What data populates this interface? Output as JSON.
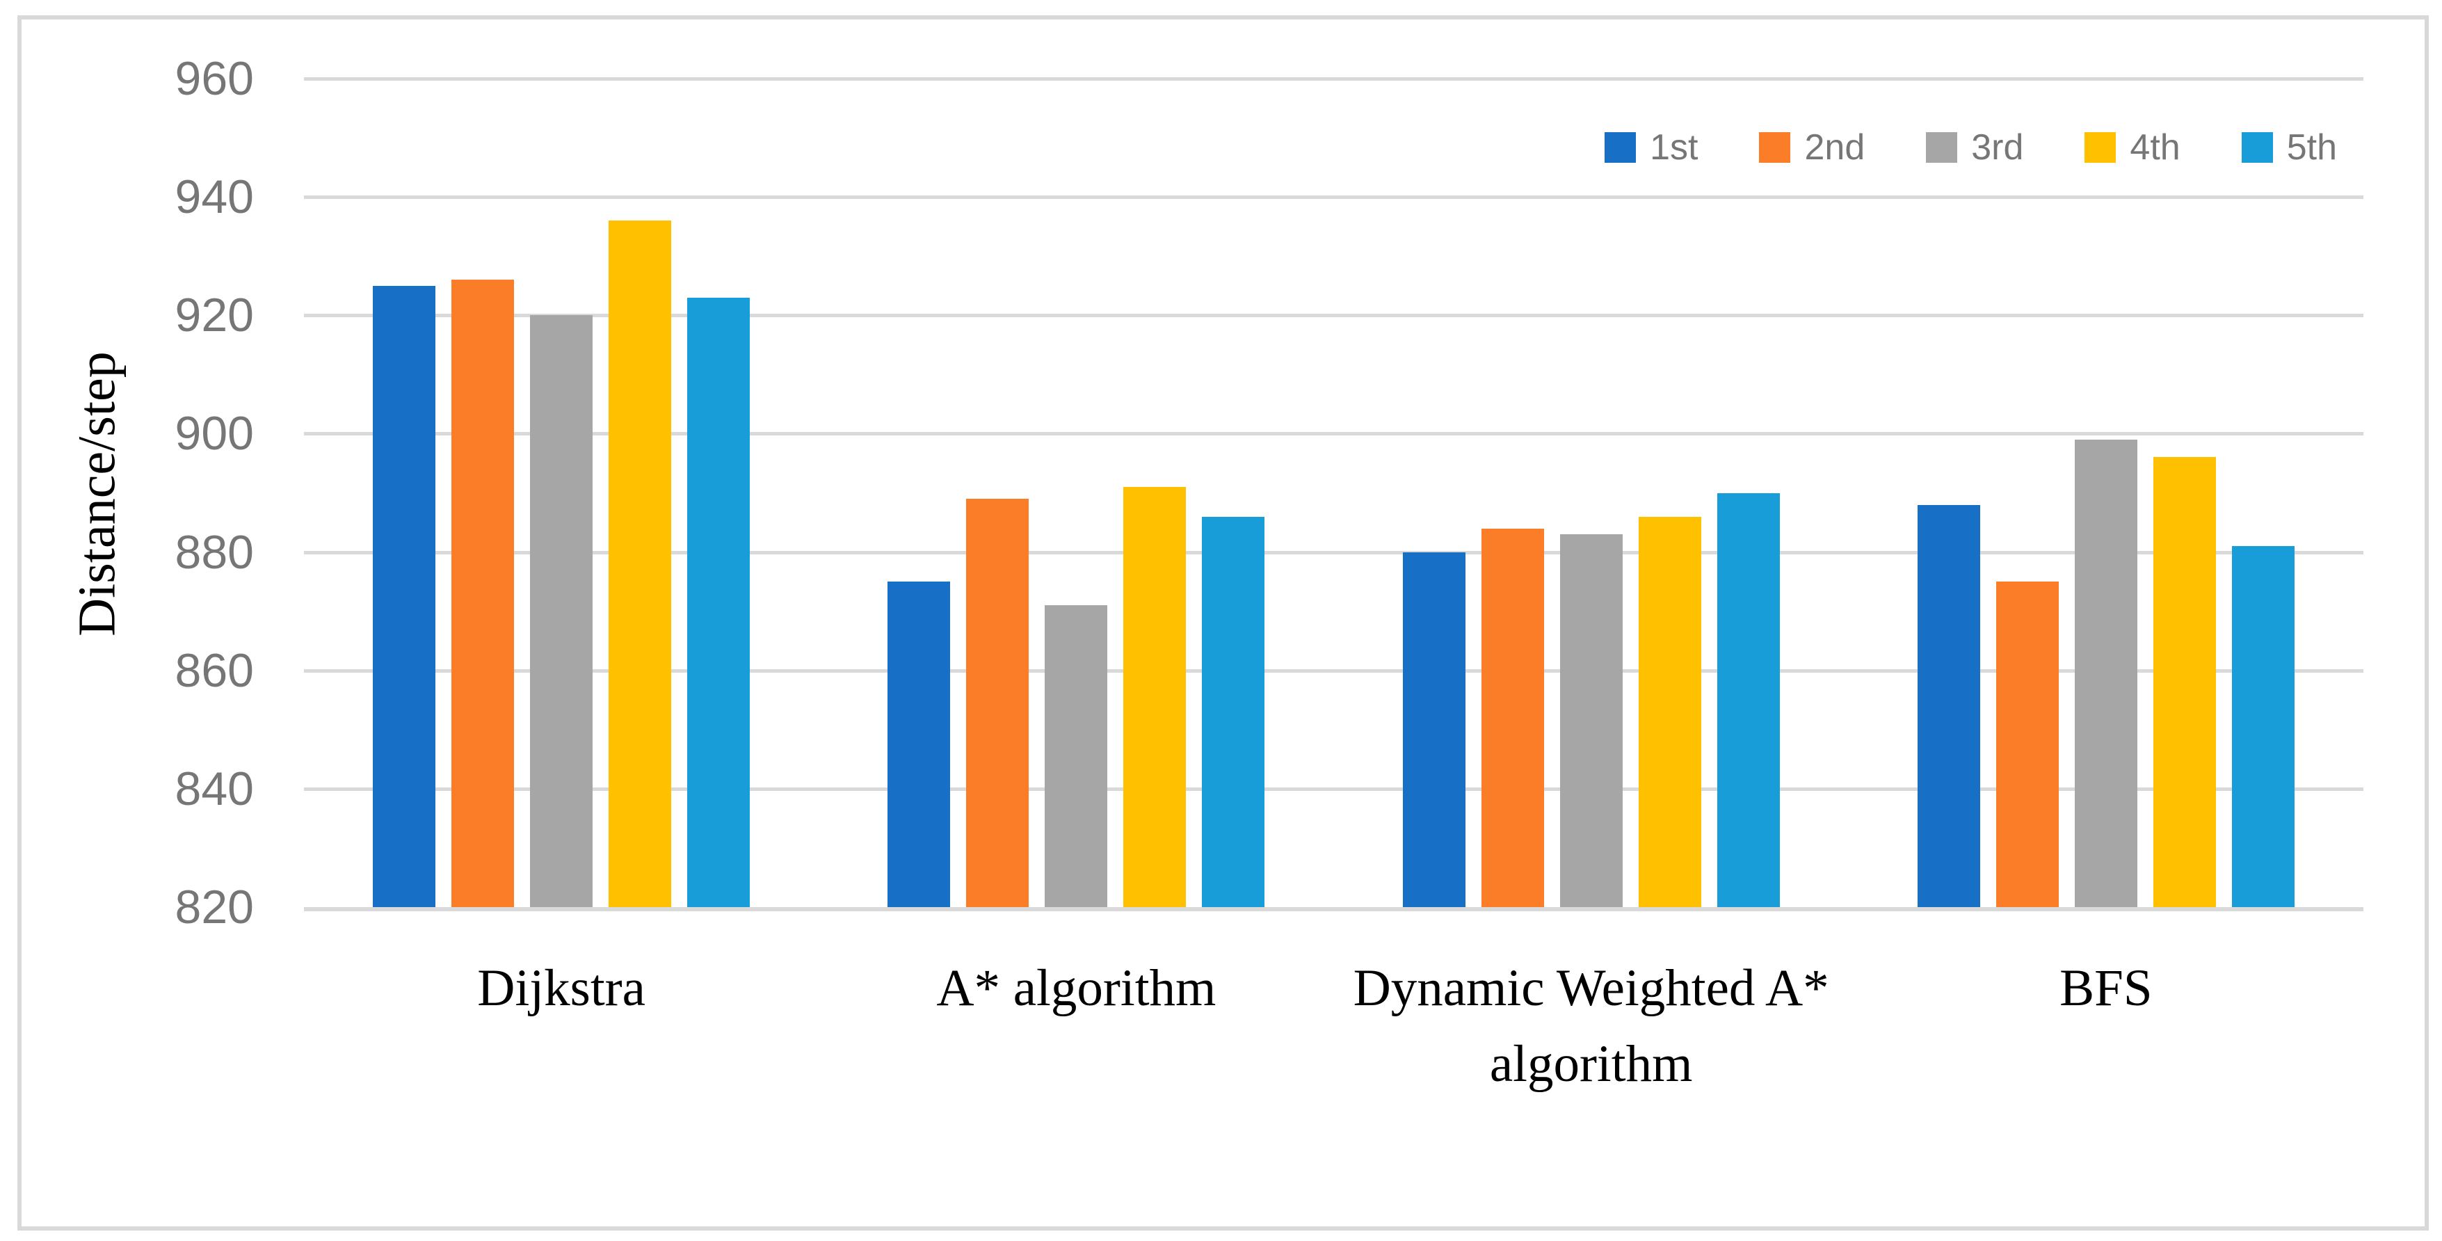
{
  "chart_data": {
    "type": "bar",
    "title": "",
    "ylabel": "Distance/step",
    "xlabel": "",
    "categories": [
      "Dijkstra",
      "A* algorithm",
      "Dynamic Weighted A* algorithm",
      "BFS"
    ],
    "series": [
      {
        "name": "1st",
        "color": "#1770C6",
        "values": [
          925,
          875,
          880,
          888
        ]
      },
      {
        "name": "2nd",
        "color": "#FC7D27",
        "values": [
          926,
          889,
          884,
          875
        ]
      },
      {
        "name": "3rd",
        "color": "#A6A6A6",
        "values": [
          920,
          871,
          883,
          899
        ]
      },
      {
        "name": "4th",
        "color": "#FFC000",
        "values": [
          936,
          891,
          886,
          896
        ]
      },
      {
        "name": "5th",
        "color": "#199DD9",
        "values": [
          923,
          886,
          890,
          881
        ]
      }
    ],
    "ylim": [
      820,
      960
    ],
    "yticks": [
      820,
      840,
      860,
      880,
      900,
      920,
      940,
      960
    ],
    "grid": true,
    "legend_position": "top-right",
    "colors": {
      "background": "#FFFFFF",
      "border": "#D9D9D9",
      "gridline": "#D9D9D9",
      "tick_text": "#767676",
      "label_text": "#000000"
    }
  }
}
